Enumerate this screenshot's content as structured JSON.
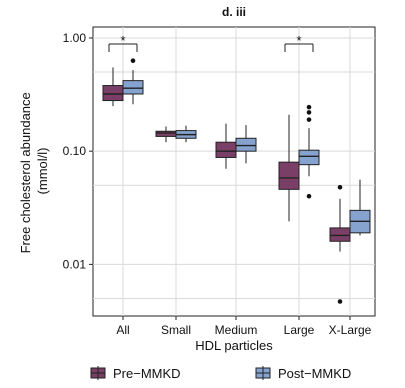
{
  "chart_data": {
    "type": "boxplot",
    "title": "d. iii",
    "xlabel": "HDL particles",
    "ylabel": "Free cholesterol abundance (mmol/l)",
    "y_scale": "log",
    "ylim": [
      0.0035,
      1.25
    ],
    "yticks": [
      {
        "value": 1.0,
        "label": "1.00"
      },
      {
        "value": 0.1,
        "label": "0.10"
      },
      {
        "value": 0.01,
        "label": "0.01"
      }
    ],
    "grid": true,
    "legend_position": "bottom",
    "categories": [
      "All",
      "Small",
      "Medium",
      "Large",
      "X-Large"
    ],
    "series": [
      {
        "name": "Pre-MMKD",
        "color": "#7a3f66",
        "boxes": [
          {
            "min": 0.25,
            "q1": 0.28,
            "median": 0.32,
            "q3": 0.38,
            "max": 0.55,
            "outliers": []
          },
          {
            "min": 0.12,
            "q1": 0.135,
            "median": 0.145,
            "q3": 0.15,
            "max": 0.165,
            "outliers": []
          },
          {
            "min": 0.07,
            "q1": 0.088,
            "median": 0.1,
            "q3": 0.12,
            "max": 0.175,
            "outliers": []
          },
          {
            "min": 0.024,
            "q1": 0.046,
            "median": 0.058,
            "q3": 0.08,
            "max": 0.21,
            "outliers": []
          },
          {
            "min": 0.013,
            "q1": 0.016,
            "median": 0.018,
            "q3": 0.021,
            "max": 0.038,
            "outliers": [
              0.048,
              0.0047
            ]
          }
        ]
      },
      {
        "name": "Post-MMKD",
        "color": "#86a2cf",
        "boxes": [
          {
            "min": 0.26,
            "q1": 0.32,
            "median": 0.36,
            "q3": 0.42,
            "max": 0.52,
            "outliers": [
              0.63
            ]
          },
          {
            "min": 0.12,
            "q1": 0.13,
            "median": 0.14,
            "q3": 0.152,
            "max": 0.168,
            "outliers": []
          },
          {
            "min": 0.078,
            "q1": 0.1,
            "median": 0.112,
            "q3": 0.13,
            "max": 0.17,
            "outliers": []
          },
          {
            "min": 0.06,
            "q1": 0.076,
            "median": 0.09,
            "q3": 0.102,
            "max": 0.16,
            "outliers": [
              0.245,
              0.22,
              0.19,
              0.04
            ]
          },
          {
            "min": 0.018,
            "q1": 0.019,
            "median": 0.024,
            "q3": 0.03,
            "max": 0.056,
            "outliers": []
          }
        ]
      }
    ],
    "significance": [
      {
        "category_index": 0,
        "label": "*"
      },
      {
        "category_index": 3,
        "label": "*"
      }
    ]
  },
  "legend": {
    "items": [
      {
        "label": "Pre−MMKD",
        "color": "#7a3f66"
      },
      {
        "label": "Post−MMKD",
        "color": "#86a2cf"
      }
    ]
  }
}
